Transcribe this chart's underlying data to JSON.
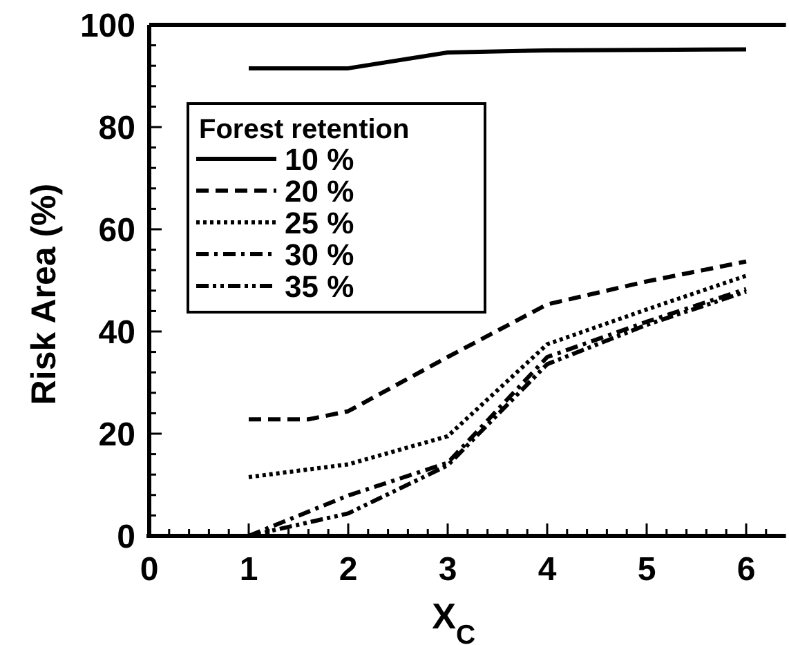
{
  "chart_data": {
    "type": "line",
    "xlabel": "X$_{C}$",
    "ylabel": "Risk Area (%)",
    "legend_title": "Forest retention",
    "legend": "top left",
    "grid": false,
    "marker": "none",
    "xlim": [
      0,
      6.4
    ],
    "ylim": [
      0,
      100
    ],
    "xticks": [
      0,
      {
        "value": 0.2,
        "label": null
      },
      {
        "value": 0.4,
        "label": null
      },
      {
        "value": 0.6,
        "label": null
      },
      {
        "value": 0.8,
        "label": null
      },
      1,
      {
        "value": 1.2,
        "label": null
      },
      {
        "value": 1.4,
        "label": null
      },
      {
        "value": 1.6,
        "label": null
      },
      {
        "value": 1.8,
        "label": null
      },
      2,
      {
        "value": 2.2,
        "label": null
      },
      {
        "value": 2.4,
        "label": null
      },
      {
        "value": 2.6,
        "label": null
      },
      {
        "value": 2.8,
        "label": null
      },
      3,
      {
        "value": 3.2,
        "label": null
      },
      {
        "value": 3.4,
        "label": null
      },
      {
        "value": 3.6,
        "label": null
      },
      {
        "value": 3.8,
        "label": null
      },
      4,
      {
        "value": 4.2,
        "label": null
      },
      {
        "value": 4.4,
        "label": null
      },
      {
        "value": 4.6,
        "label": null
      },
      {
        "value": 4.8,
        "label": null
      },
      5,
      {
        "value": 5.2,
        "label": null
      },
      {
        "value": 5.4,
        "label": null
      },
      {
        "value": 5.6,
        "label": null
      },
      {
        "value": 5.8,
        "label": null
      },
      6,
      {
        "value": 6.2,
        "label": null
      }
    ],
    "yticks": [
      0,
      {
        "value": 4,
        "label": null
      },
      {
        "value": 8,
        "label": null
      },
      {
        "value": 12,
        "label": null
      },
      {
        "value": 16,
        "label": null
      },
      20,
      {
        "value": 24,
        "label": null
      },
      {
        "value": 28,
        "label": null
      },
      {
        "value": 32,
        "label": null
      },
      {
        "value": 36,
        "label": null
      },
      40,
      {
        "value": 44,
        "label": null
      },
      {
        "value": 48,
        "label": null
      },
      {
        "value": 52,
        "label": null
      },
      {
        "value": 56,
        "label": null
      },
      60,
      {
        "value": 64,
        "label": null
      },
      {
        "value": 68,
        "label": null
      },
      {
        "value": 72,
        "label": null
      },
      {
        "value": 76,
        "label": null
      },
      80,
      {
        "value": 84,
        "label": null
      },
      {
        "value": 88,
        "label": null
      },
      {
        "value": 92,
        "label": null
      },
      {
        "value": 96,
        "label": null
      },
      100
    ],
    "x": [
      1,
      2,
      3,
      4,
      5,
      6
    ],
    "series": [
      {
        "name": "10 %",
        "color": "#000000",
        "line_style": "solid",
        "values": [
          91.5,
          91.5,
          94.6,
          95,
          95.1,
          95.2
        ]
      },
      {
        "name": "20 %",
        "color": "#000000",
        "line_style": "dashed",
        "x": [
          1,
          1.6,
          2,
          3,
          4,
          5,
          6
        ],
        "values": [
          22.8,
          22.8,
          24.4,
          35,
          45.3,
          49.8,
          53.7
        ]
      },
      {
        "name": "25 %",
        "color": "#000000",
        "line_style": "dotted",
        "values": [
          11.5,
          14,
          19.5,
          37.5,
          44.3,
          50.9
        ]
      },
      {
        "name": "30 %",
        "color": "#000000",
        "line_style": "dashdot",
        "values": [
          0,
          7.9,
          14.3,
          35,
          41.9,
          48.3
        ]
      },
      {
        "name": "35 %",
        "color": "#000000",
        "line_style": "dashdotdot",
        "values": [
          0,
          4.4,
          13.8,
          33.6,
          41.3,
          47.8
        ]
      }
    ]
  }
}
